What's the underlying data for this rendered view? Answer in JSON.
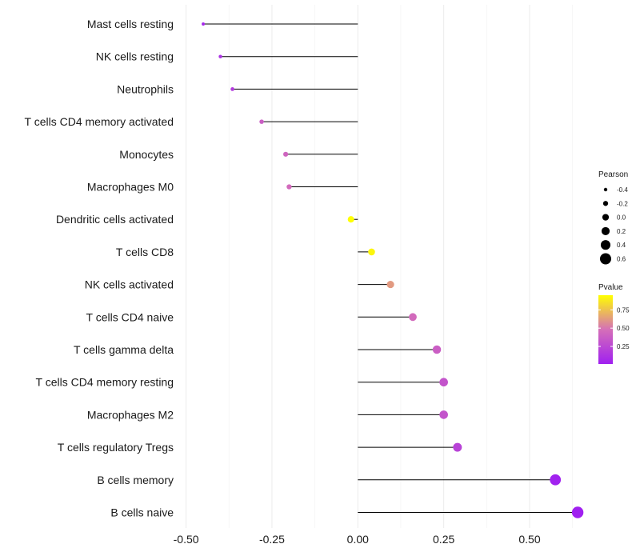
{
  "chart_data": {
    "type": "lollipop",
    "title": "",
    "xlabel": "",
    "ylabel": "",
    "xlim": [
      -0.52,
      0.67
    ],
    "xticks": [
      -0.5,
      -0.25,
      0.0,
      0.25,
      0.5
    ],
    "xtick_labels": [
      "-0.50",
      "-0.25",
      "0.00",
      "0.25",
      "0.50"
    ],
    "grid": true,
    "categories": [
      "Mast cells resting",
      "NK cells resting",
      "Neutrophils",
      "T cells CD4 memory activated",
      "Monocytes",
      "Macrophages M0",
      "Dendritic cells activated",
      "T cells CD8",
      "NK cells activated",
      "T cells CD4 naive",
      "T cells gamma delta",
      "T cells CD4 memory resting",
      "Macrophages M2",
      "T cells regulatory  Tregs ",
      "B cells memory",
      "B cells naive"
    ],
    "pearson": [
      -0.45,
      -0.4,
      -0.365,
      -0.28,
      -0.21,
      -0.2,
      -0.02,
      0.04,
      0.095,
      0.16,
      0.23,
      0.25,
      0.25,
      0.29,
      0.575,
      0.64
    ],
    "pvalue": [
      0.05,
      0.12,
      0.17,
      0.38,
      0.42,
      0.45,
      0.95,
      0.92,
      0.62,
      0.45,
      0.38,
      0.32,
      0.32,
      0.22,
      0.02,
      0.01
    ],
    "legend_size": {
      "title": "Pearson",
      "breaks": [
        -0.4,
        -0.2,
        0.0,
        0.2,
        0.4,
        0.6
      ],
      "labels": [
        "-0.4",
        "-0.2",
        "0.0",
        "0.2",
        "0.4",
        "0.6"
      ]
    },
    "legend_color": {
      "title": "Pvalue",
      "breaks": [
        0.75,
        0.5,
        0.25
      ],
      "labels": [
        "0.75",
        "0.50",
        "0.25"
      ],
      "range": [
        0.01,
        0.95
      ],
      "low_color": "#a020f0",
      "mid_color": "#d56fb8",
      "high_color": "#ffff00"
    },
    "legend_position": "right"
  }
}
